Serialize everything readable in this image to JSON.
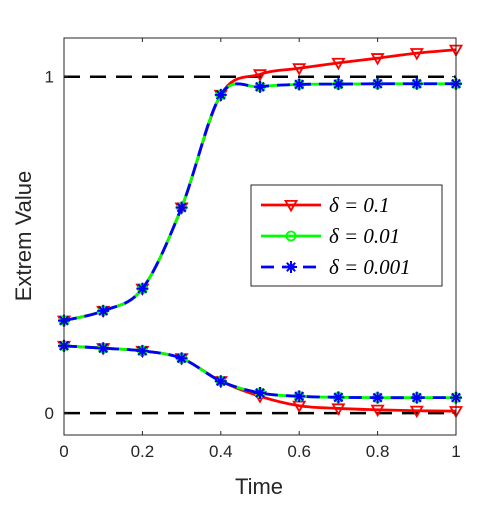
{
  "chart_data": {
    "type": "line",
    "title": "",
    "xlabel": "Time",
    "ylabel": "Extrem Value",
    "xlim": [
      0,
      1
    ],
    "ylim": [
      -0.065,
      1.115
    ],
    "xticks": [
      0,
      0.2,
      0.4,
      0.6,
      0.8,
      1
    ],
    "xtick_labels": [
      "0",
      "0.2",
      "0.4",
      "0.6",
      "0.8",
      "1"
    ],
    "yticks": [
      0,
      1
    ],
    "ytick_labels": [
      "0",
      "1"
    ],
    "grid": false,
    "legend_placement": "center-right",
    "reference_lines": [
      {
        "y": 1,
        "style": "dashed",
        "color": "#000000"
      },
      {
        "y": 0,
        "style": "dashed",
        "color": "#000000"
      }
    ],
    "x": [
      0,
      0.1,
      0.2,
      0.3,
      0.4,
      0.5,
      0.6,
      0.7,
      0.8,
      0.9,
      1.0
    ],
    "series": [
      {
        "name": "δ = 0.1",
        "color": "#ff0000",
        "marker": "triangle-down",
        "dash": "solid",
        "group": "upper",
        "values": [
          0.275,
          0.304,
          0.37,
          0.611,
          0.946,
          1.007,
          1.025,
          1.041,
          1.055,
          1.07,
          1.08
        ]
      },
      {
        "name": "δ = 0.01",
        "color": "#00ff00",
        "marker": "circle",
        "dash": "solid",
        "group": "upper",
        "values": [
          0.275,
          0.304,
          0.37,
          0.611,
          0.946,
          0.97,
          0.977,
          0.978,
          0.979,
          0.979,
          0.979
        ]
      },
      {
        "name": "δ = 0.001",
        "color": "#0000ff",
        "marker": "asterisk",
        "dash": "dashed",
        "group": "upper",
        "values": [
          0.275,
          0.304,
          0.37,
          0.611,
          0.946,
          0.97,
          0.977,
          0.978,
          0.979,
          0.979,
          0.979
        ]
      },
      {
        "name": "δ = 0.1",
        "color": "#ff0000",
        "marker": "triangle-down",
        "dash": "solid",
        "group": "lower",
        "values": [
          0.2,
          0.193,
          0.185,
          0.163,
          0.095,
          0.05,
          0.022,
          0.014,
          0.01,
          0.007,
          0.006
        ]
      },
      {
        "name": "δ = 0.01",
        "color": "#00ff00",
        "marker": "circle",
        "dash": "solid",
        "group": "lower",
        "values": [
          0.2,
          0.193,
          0.185,
          0.163,
          0.095,
          0.06,
          0.05,
          0.047,
          0.046,
          0.046,
          0.046
        ]
      },
      {
        "name": "δ = 0.001",
        "color": "#0000ff",
        "marker": "asterisk",
        "dash": "dashed",
        "group": "lower",
        "values": [
          0.2,
          0.193,
          0.185,
          0.163,
          0.095,
          0.06,
          0.05,
          0.047,
          0.046,
          0.046,
          0.046
        ]
      }
    ],
    "legend": [
      {
        "label": "δ = 0.1",
        "color": "#ff0000",
        "marker": "triangle-down",
        "dash": "solid"
      },
      {
        "label": "δ = 0.01",
        "color": "#00ff00",
        "marker": "circle",
        "dash": "solid"
      },
      {
        "label": "δ = 0.001",
        "color": "#0000ff",
        "marker": "asterisk",
        "dash": "dashed"
      }
    ]
  }
}
